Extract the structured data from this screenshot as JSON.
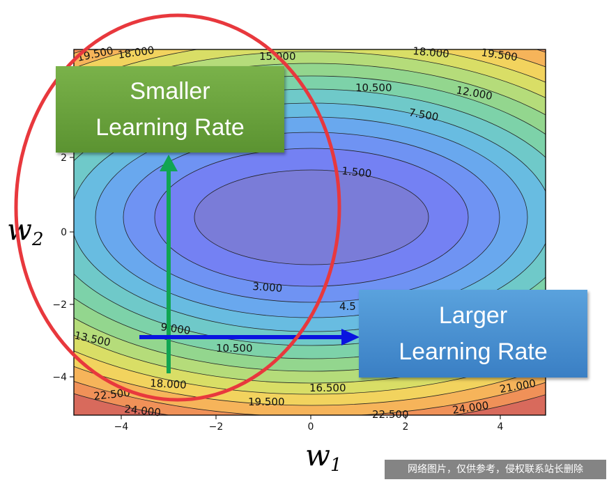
{
  "figure": {
    "x_axis_symbol": "w",
    "x_axis_subscript": "1",
    "y_axis_symbol": "w",
    "y_axis_subscript": "2",
    "x_ticks": [
      "−4",
      "−2",
      "0",
      "2",
      "4"
    ],
    "y_ticks": [
      "2",
      "0",
      "−2",
      "−4"
    ],
    "contour_labels": [
      "19.500",
      "18.000",
      "15.000",
      "18.000",
      "19.500",
      "10.500",
      "12.000",
      "7.500",
      "1.500",
      "3.000",
      "4.5",
      "9.000",
      "13.500",
      "10.500",
      "18.000",
      "16.500",
      "21.000",
      "22.500",
      "24.000",
      "19.500",
      "22.500",
      "24.000"
    ]
  },
  "callouts": {
    "smaller": [
      "Smaller",
      "Learning Rate"
    ],
    "larger": [
      "Larger",
      "Learning Rate"
    ]
  },
  "watermark": "网络图片，仅供参考，侵权联系站长删除",
  "colors": {
    "red_circle": "#e8383d",
    "green_arrow": "#11a552",
    "blue_arrow": "#0a14e0",
    "green_box": "#6aa43e",
    "blue_box": "#4a90d2"
  }
}
